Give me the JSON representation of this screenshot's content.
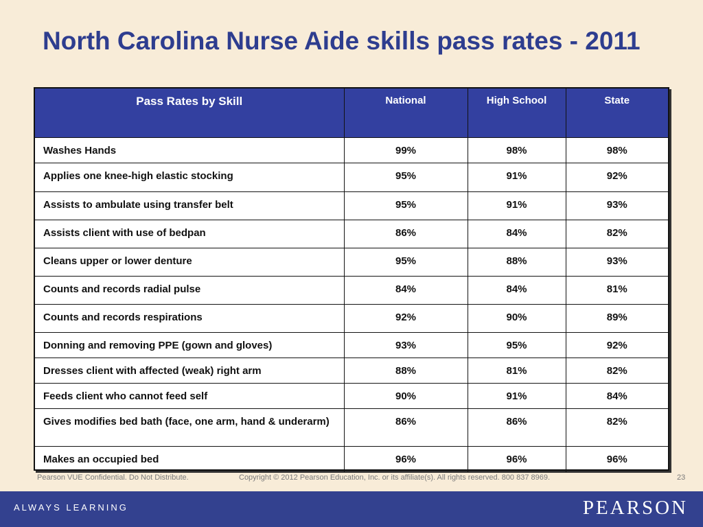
{
  "slide": {
    "title": "North Carolina Nurse Aide skills pass rates - 2011",
    "footer_left": "Pearson VUE Confidential. Do Not Distribute.",
    "footer_center": "Copyright © 2012 Pearson Education, Inc. or its affiliate(s). All rights reserved. 800 837 8969.",
    "page_number": "23",
    "tagline": "ALWAYS LEARNING",
    "logo_text": "PEARSON"
  },
  "table": {
    "headers": [
      "Pass Rates by Skill",
      "National",
      "High School",
      "State"
    ],
    "rows": [
      {
        "skill": "Washes Hands",
        "national": "99%",
        "high_school": "98%",
        "state": "98%"
      },
      {
        "skill": "Applies one knee-high elastic stocking",
        "national": "95%",
        "high_school": "91%",
        "state": "92%"
      },
      {
        "skill": "Assists to ambulate using transfer belt",
        "national": "95%",
        "high_school": "91%",
        "state": "93%"
      },
      {
        "skill": "Assists client with use of bedpan",
        "national": "86%",
        "high_school": "84%",
        "state": "82%"
      },
      {
        "skill": "Cleans upper or lower denture",
        "national": "95%",
        "high_school": "88%",
        "state": "93%"
      },
      {
        "skill": "Counts and records radial pulse",
        "national": "84%",
        "high_school": "84%",
        "state": "81%"
      },
      {
        "skill": "Counts and records respirations",
        "national": "92%",
        "high_school": "90%",
        "state": "89%"
      },
      {
        "skill": "Donning and removing PPE (gown and gloves)",
        "national": "93%",
        "high_school": "95%",
        "state": "92%"
      },
      {
        "skill": "Dresses client with affected (weak) right arm",
        "national": "88%",
        "high_school": "81%",
        "state": "82%"
      },
      {
        "skill": "Feeds client who cannot feed self",
        "national": "90%",
        "high_school": "91%",
        "state": "84%"
      },
      {
        "skill": "Gives modifies bed bath (face, one arm, hand & underarm)",
        "national": "86%",
        "high_school": "86%",
        "state": "82%"
      },
      {
        "skill": "Makes an occupied bed",
        "national": "96%",
        "high_school": "96%",
        "state": "96%"
      }
    ]
  }
}
